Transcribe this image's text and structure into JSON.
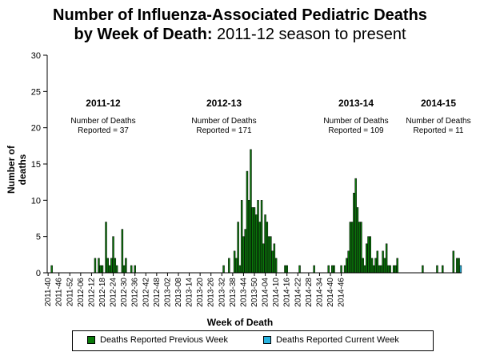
{
  "title": {
    "line1": "Number of Influenza-Associated Pediatric Deaths",
    "line2_bold": "by Week of Death:",
    "line2_rest": " 2011-12 season to present"
  },
  "annotations": [
    {
      "season": "2011-12",
      "line1": "Number of Deaths",
      "line2": "Reported = 37"
    },
    {
      "season": "2012-13",
      "line1": "Number of Deaths",
      "line2": "Reported = 171"
    },
    {
      "season": "2013-14",
      "line1": "Number of Deaths",
      "line2": "Reported = 109"
    },
    {
      "season": "2014-15",
      "line1": "Number of Deaths",
      "line2": "Reported = 11"
    }
  ],
  "colors": {
    "previous": "#0a7a0a",
    "current": "#29b3df",
    "axis": "#000000"
  },
  "chart_data": {
    "type": "bar",
    "title": "Number of Influenza-Associated Pediatric Deaths by Week of Death: 2011-12 season to present",
    "xlabel": "Week of Death",
    "ylabel": "Number of deaths",
    "ylim": [
      0,
      30
    ],
    "yticks": [
      0,
      5,
      10,
      15,
      20,
      25,
      30
    ],
    "grid": false,
    "legend_position": "bottom",
    "x_ticks": [
      "2011-40",
      "2011-46",
      "2011-52",
      "2012-06",
      "2012-12",
      "2012-18",
      "2012-24",
      "2012-30",
      "2012-36",
      "2012-42",
      "2012-48",
      "2013-02",
      "2013-08",
      "2013-14",
      "2013-20",
      "2013-26",
      "2013-32",
      "2013-38",
      "2013-44",
      "2013-50",
      "2014-04",
      "2014-10",
      "2014-16",
      "2014-22",
      "2014-28",
      "2014-34",
      "2014-40",
      "2014-46"
    ],
    "series": [
      {
        "name": "Deaths Reported Previous Week",
        "values": [
          0,
          0,
          1,
          0,
          0,
          0,
          0,
          0,
          0,
          0,
          0,
          0,
          0,
          0,
          0,
          0,
          0,
          0,
          0,
          0,
          0,
          0,
          0,
          0,
          0,
          0,
          2,
          0,
          2,
          1,
          1,
          0,
          7,
          2,
          1,
          2,
          5,
          2,
          1,
          0,
          0,
          6,
          1,
          2,
          0,
          0,
          1,
          0,
          1,
          0,
          0,
          0,
          0,
          0,
          0,
          0,
          0,
          0,
          0,
          0,
          0,
          0,
          0,
          0,
          0,
          0,
          0,
          0,
          0,
          0,
          0,
          0,
          0,
          0,
          0,
          0,
          0,
          0,
          0,
          0,
          0,
          0,
          0,
          0,
          0,
          0,
          0,
          0,
          0,
          0,
          0,
          0,
          0,
          0,
          0,
          0,
          0,
          1,
          0,
          0,
          2,
          0,
          0,
          3,
          2,
          7,
          1,
          10,
          5,
          6,
          14,
          10,
          17,
          9,
          9,
          8,
          10,
          7,
          10,
          4,
          8,
          7,
          5,
          5,
          3,
          4,
          2,
          0,
          0,
          0,
          0,
          1,
          1,
          0,
          0,
          0,
          0,
          0,
          0,
          1,
          0,
          0,
          0,
          0,
          0,
          0,
          0,
          1,
          0,
          0,
          0,
          0,
          0,
          0,
          0,
          1,
          0,
          1,
          1,
          0,
          0,
          0,
          1,
          0,
          1,
          2,
          3,
          7,
          7,
          11,
          13,
          9,
          7,
          7,
          2,
          1,
          4,
          5,
          5,
          2,
          1,
          2,
          3,
          1,
          1,
          3,
          2,
          4,
          1,
          1,
          0,
          1,
          1,
          2,
          0,
          0,
          0,
          0,
          0,
          0,
          0,
          0,
          0,
          0,
          0,
          0,
          0,
          1,
          0,
          0,
          0,
          0,
          0,
          0,
          0,
          1,
          0,
          0,
          1,
          0,
          0,
          0,
          0,
          0,
          3,
          0,
          2,
          2,
          0
        ],
        "color": "#0a7a0a"
      },
      {
        "name": "Deaths Reported Current Week",
        "values": [
          0,
          0,
          0,
          0,
          0,
          0,
          0,
          0,
          0,
          0,
          0,
          0,
          0,
          0,
          0,
          0,
          0,
          0,
          0,
          0,
          0,
          0,
          0,
          0,
          0,
          0,
          0,
          0,
          0,
          0,
          0,
          0,
          0,
          0,
          0,
          0,
          0,
          0,
          0,
          0,
          0,
          0,
          0,
          0,
          0,
          0,
          0,
          0,
          0,
          0,
          0,
          0,
          0,
          0,
          0,
          0,
          0,
          0,
          0,
          0,
          0,
          0,
          0,
          0,
          0,
          0,
          0,
          0,
          0,
          0,
          0,
          0,
          0,
          0,
          0,
          0,
          0,
          0,
          0,
          0,
          0,
          0,
          0,
          0,
          0,
          0,
          0,
          0,
          0,
          0,
          0,
          0,
          0,
          0,
          0,
          0,
          0,
          0,
          0,
          0,
          0,
          0,
          0,
          0,
          0,
          0,
          0,
          0,
          0,
          0,
          0,
          0,
          0,
          0,
          0,
          0,
          0,
          0,
          0,
          0,
          0,
          0,
          0,
          0,
          0,
          0,
          0,
          0,
          0,
          0,
          0,
          0,
          0,
          0,
          0,
          0,
          0,
          0,
          0,
          0,
          0,
          0,
          0,
          0,
          0,
          0,
          0,
          0,
          0,
          0,
          0,
          0,
          0,
          0,
          0,
          0,
          0,
          0,
          0,
          0,
          0,
          0,
          0,
          0,
          0,
          0,
          0,
          0,
          0,
          0,
          0,
          0,
          0,
          0,
          0,
          0,
          0,
          0,
          0,
          0,
          0,
          0,
          0,
          0,
          0,
          0,
          0,
          0,
          0,
          0,
          0,
          0,
          0,
          0,
          0,
          0,
          0,
          0,
          0,
          0,
          0,
          0,
          0,
          0,
          0,
          0,
          0,
          0,
          0,
          0,
          0,
          0,
          0,
          0,
          0,
          0,
          0,
          0,
          0,
          0,
          0,
          0,
          0,
          0,
          0,
          0,
          0,
          0,
          1,
          1
        ],
        "color": "#29b3df"
      }
    ]
  },
  "legend": {
    "previous_label": "Deaths Reported Previous Week",
    "current_label": "Deaths Reported Current Week"
  }
}
